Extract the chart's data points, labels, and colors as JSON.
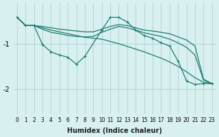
{
  "xlabel": "Humidex (Indice chaleur)",
  "ylabel": "",
  "bg_color": "#d8f0f0",
  "grid_color": "#b8d8d8",
  "line_color": "#1a7a6e",
  "xlim": [
    -0.5,
    23.5
  ],
  "ylim": [
    -2.55,
    -0.1
  ],
  "xticks": [
    0,
    1,
    2,
    3,
    4,
    5,
    6,
    7,
    8,
    9,
    10,
    11,
    12,
    13,
    14,
    15,
    16,
    17,
    18,
    19,
    20,
    21,
    22,
    23
  ],
  "yticks": [
    -2,
    -1
  ],
  "series": [
    {
      "x": [
        0,
        1,
        2,
        3,
        4,
        5,
        6,
        7,
        8,
        10,
        11,
        12,
        13,
        14,
        15,
        16,
        17,
        18,
        19,
        20,
        21,
        22,
        23
      ],
      "y": [
        -0.42,
        -0.6,
        -0.6,
        -1.02,
        -1.18,
        -1.25,
        -1.3,
        -1.45,
        -1.28,
        -0.7,
        -0.42,
        -0.42,
        -0.52,
        -0.7,
        -0.82,
        -0.88,
        -0.98,
        -1.05,
        -1.38,
        -1.82,
        -1.9,
        -1.88,
        -1.88
      ],
      "marker": "+"
    },
    {
      "x": [
        0,
        1,
        2,
        3,
        4,
        5,
        6,
        7,
        8,
        9,
        10,
        11,
        12,
        13,
        14,
        15,
        16,
        17,
        18,
        19,
        20,
        21,
        22,
        23
      ],
      "y": [
        -0.42,
        -0.6,
        -0.6,
        -0.62,
        -0.65,
        -0.68,
        -0.7,
        -0.72,
        -0.74,
        -0.74,
        -0.68,
        -0.62,
        -0.58,
        -0.6,
        -0.65,
        -0.7,
        -0.72,
        -0.75,
        -0.78,
        -0.85,
        -0.92,
        -1.05,
        -1.78,
        -1.88
      ],
      "marker": null
    },
    {
      "x": [
        0,
        1,
        2,
        3,
        4,
        5,
        6,
        7,
        8,
        9,
        10,
        11,
        12,
        13,
        14,
        15,
        16,
        17,
        18,
        19,
        20,
        21,
        22,
        23
      ],
      "y": [
        -0.42,
        -0.6,
        -0.6,
        -0.68,
        -0.75,
        -0.78,
        -0.82,
        -0.84,
        -0.85,
        -0.84,
        -0.75,
        -0.68,
        -0.62,
        -0.65,
        -0.7,
        -0.76,
        -0.8,
        -0.84,
        -0.9,
        -0.98,
        -1.08,
        -1.25,
        -1.8,
        -1.88
      ],
      "marker": null
    },
    {
      "x": [
        0,
        1,
        2,
        3,
        4,
        5,
        6,
        7,
        8,
        9,
        10,
        11,
        12,
        13,
        14,
        15,
        16,
        17,
        18,
        19,
        20,
        21,
        22,
        23
      ],
      "y": [
        -0.42,
        -0.6,
        -0.6,
        -0.65,
        -0.7,
        -0.74,
        -0.78,
        -0.82,
        -0.86,
        -0.88,
        -0.9,
        -0.95,
        -1.0,
        -1.06,
        -1.12,
        -1.18,
        -1.25,
        -1.32,
        -1.4,
        -1.5,
        -1.62,
        -1.75,
        -1.85,
        -1.88
      ],
      "marker": null
    }
  ]
}
